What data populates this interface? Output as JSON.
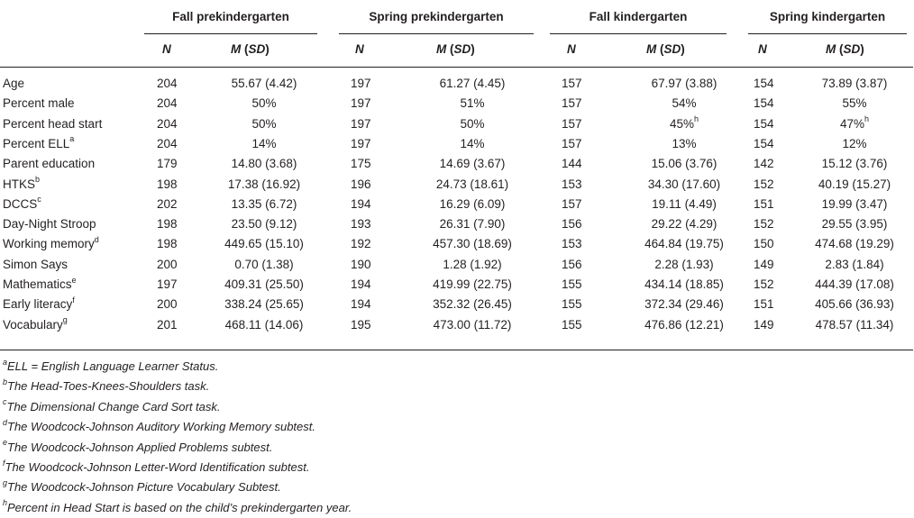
{
  "groups": [
    "Fall prekindergarten",
    "Spring prekindergarten",
    "Fall kindergarten",
    "Spring kindergarten"
  ],
  "subheaders": {
    "n": "N",
    "m": "M",
    "sd": "SD"
  },
  "rows": [
    {
      "label": "Age",
      "sup": "",
      "cells": [
        [
          "204",
          "55.67 (4.42)",
          ""
        ],
        [
          "197",
          "61.27 (4.45)",
          ""
        ],
        [
          "157",
          "67.97 (3.88)",
          ""
        ],
        [
          "154",
          "73.89 (3.87)",
          ""
        ]
      ]
    },
    {
      "label": "Percent male",
      "sup": "",
      "cells": [
        [
          "204",
          "50%",
          ""
        ],
        [
          "197",
          "51%",
          ""
        ],
        [
          "157",
          "54%",
          ""
        ],
        [
          "154",
          "55%",
          ""
        ]
      ]
    },
    {
      "label": "Percent head start",
      "sup": "",
      "cells": [
        [
          "204",
          "50%",
          ""
        ],
        [
          "197",
          "50%",
          ""
        ],
        [
          "157",
          "45%",
          "h"
        ],
        [
          "154",
          "47%",
          "h"
        ]
      ]
    },
    {
      "label": "Percent ELL",
      "sup": "a",
      "cells": [
        [
          "204",
          "14%",
          ""
        ],
        [
          "197",
          "14%",
          ""
        ],
        [
          "157",
          "13%",
          ""
        ],
        [
          "154",
          "12%",
          ""
        ]
      ]
    },
    {
      "label": "Parent education",
      "sup": "",
      "cells": [
        [
          "179",
          "14.80 (3.68)",
          ""
        ],
        [
          "175",
          "14.69 (3.67)",
          ""
        ],
        [
          "144",
          "15.06 (3.76)",
          ""
        ],
        [
          "142",
          "15.12 (3.76)",
          ""
        ]
      ]
    },
    {
      "label": "HTKS",
      "sup": "b",
      "cells": [
        [
          "198",
          "17.38 (16.92)",
          ""
        ],
        [
          "196",
          "24.73 (18.61)",
          ""
        ],
        [
          "153",
          "34.30 (17.60)",
          ""
        ],
        [
          "152",
          "40.19 (15.27)",
          ""
        ]
      ]
    },
    {
      "label": "DCCS",
      "sup": "c",
      "cells": [
        [
          "202",
          "13.35 (6.72)",
          ""
        ],
        [
          "194",
          "16.29 (6.09)",
          ""
        ],
        [
          "157",
          "19.11 (4.49)",
          ""
        ],
        [
          "151",
          "19.99 (3.47)",
          ""
        ]
      ]
    },
    {
      "label": "Day-Night Stroop",
      "sup": "",
      "cells": [
        [
          "198",
          "23.50 (9.12)",
          ""
        ],
        [
          "193",
          "26.31 (7.90)",
          ""
        ],
        [
          "156",
          "29.22 (4.29)",
          ""
        ],
        [
          "152",
          "29.55 (3.95)",
          ""
        ]
      ]
    },
    {
      "label": "Working memory",
      "sup": "d",
      "cells": [
        [
          "198",
          "449.65 (15.10)",
          ""
        ],
        [
          "192",
          "457.30 (18.69)",
          ""
        ],
        [
          "153",
          "464.84 (19.75)",
          ""
        ],
        [
          "150",
          "474.68 (19.29)",
          ""
        ]
      ]
    },
    {
      "label": "Simon Says",
      "sup": "",
      "cells": [
        [
          "200",
          "0.70 (1.38)",
          ""
        ],
        [
          "190",
          "1.28 (1.92)",
          ""
        ],
        [
          "156",
          "2.28 (1.93)",
          ""
        ],
        [
          "149",
          "2.83 (1.84)",
          ""
        ]
      ]
    },
    {
      "label": "Mathematics",
      "sup": "e",
      "cells": [
        [
          "197",
          "409.31 (25.50)",
          ""
        ],
        [
          "194",
          "419.99 (22.75)",
          ""
        ],
        [
          "155",
          "434.14 (18.85)",
          ""
        ],
        [
          "152",
          "444.39 (17.08)",
          ""
        ]
      ]
    },
    {
      "label": "Early literacy",
      "sup": "f",
      "cells": [
        [
          "200",
          "338.24 (25.65)",
          ""
        ],
        [
          "194",
          "352.32 (26.45)",
          ""
        ],
        [
          "155",
          "372.34 (29.46)",
          ""
        ],
        [
          "151",
          "405.66 (36.93)",
          ""
        ]
      ]
    },
    {
      "label": "Vocabulary",
      "sup": "g",
      "cells": [
        [
          "201",
          "468.11 (14.06)",
          ""
        ],
        [
          "195",
          "473.00 (11.72)",
          ""
        ],
        [
          "155",
          "476.86 (12.21)",
          ""
        ],
        [
          "149",
          "478.57 (11.34)",
          ""
        ]
      ]
    }
  ],
  "footnotes": [
    {
      "mark": "a",
      "text": "ELL = English Language Learner Status."
    },
    {
      "mark": "b",
      "text": "The Head-Toes-Knees-Shoulders task."
    },
    {
      "mark": "c",
      "text": "The Dimensional Change Card Sort task."
    },
    {
      "mark": "d",
      "text": "The Woodcock-Johnson Auditory Working Memory subtest."
    },
    {
      "mark": "e",
      "text": "The Woodcock-Johnson Applied Problems subtest."
    },
    {
      "mark": "f",
      "text": "The Woodcock-Johnson Letter-Word Identification subtest."
    },
    {
      "mark": "g",
      "text": "The Woodcock-Johnson Picture Vocabulary Subtest."
    },
    {
      "mark": "h",
      "text": "Percent in Head Start is based on the child’s prekindergarten year."
    }
  ]
}
